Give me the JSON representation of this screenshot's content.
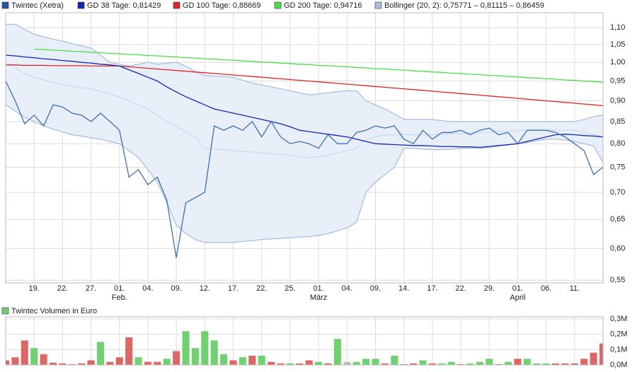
{
  "chart_data": [
    {
      "type": "line",
      "ylog": true,
      "grid": true,
      "xlim": [
        0,
        63
      ],
      "ylim": [
        0.546,
        1.146
      ],
      "yticks": [
        {
          "value": 0.55,
          "label": "0,55"
        },
        {
          "value": 0.6,
          "label": "0,60"
        },
        {
          "value": 0.65,
          "label": "0,65"
        },
        {
          "value": 0.7,
          "label": "0,70"
        },
        {
          "value": 0.75,
          "label": "0,75"
        },
        {
          "value": 0.8,
          "label": "0,80"
        },
        {
          "value": 0.85,
          "label": "0,85"
        },
        {
          "value": 0.9,
          "label": "0,90"
        },
        {
          "value": 0.95,
          "label": "0,95"
        },
        {
          "value": 1.0,
          "label": "1,00"
        },
        {
          "value": 1.05,
          "label": "1,05"
        },
        {
          "value": 1.1,
          "label": "1,10"
        }
      ],
      "xticks": [
        {
          "value": 3,
          "label": "19."
        },
        {
          "value": 6,
          "label": "22."
        },
        {
          "value": 9,
          "label": "27."
        },
        {
          "value": 12,
          "label": "01."
        },
        {
          "value": 15,
          "label": "04."
        },
        {
          "value": 18,
          "label": "09."
        },
        {
          "value": 21,
          "label": "12."
        },
        {
          "value": 24,
          "label": "17."
        },
        {
          "value": 27,
          "label": "22."
        },
        {
          "value": 30,
          "label": "25."
        },
        {
          "value": 33,
          "label": "01."
        },
        {
          "value": 36,
          "label": "04."
        },
        {
          "value": 39,
          "label": "09."
        },
        {
          "value": 42,
          "label": "14."
        },
        {
          "value": 45,
          "label": "17."
        },
        {
          "value": 48,
          "label": "22."
        },
        {
          "value": 51,
          "label": "29."
        },
        {
          "value": 54,
          "label": "01."
        },
        {
          "value": 57,
          "label": "06."
        },
        {
          "value": 60,
          "label": "11."
        }
      ],
      "month_ticks": [
        {
          "value": 12,
          "label": "Feb."
        },
        {
          "value": 33,
          "label": "März"
        },
        {
          "value": 54,
          "label": "April"
        }
      ],
      "series": [
        {
          "name": "Twintec (Xetra)",
          "color": "#3d6fb8",
          "legend_color": "#2255a4",
          "values": [
            0.95,
            0.9,
            0.845,
            0.865,
            0.84,
            0.89,
            0.885,
            0.87,
            0.865,
            0.85,
            0.87,
            0.85,
            0.83,
            0.73,
            0.745,
            0.715,
            0.73,
            0.685,
            0.585,
            0.68,
            0.69,
            0.7,
            0.84,
            0.83,
            0.84,
            0.83,
            0.85,
            0.815,
            0.85,
            0.815,
            0.8,
            0.805,
            0.8,
            0.79,
            0.82,
            0.8,
            0.8,
            0.825,
            0.83,
            0.84,
            0.835,
            0.84,
            0.81,
            0.8,
            0.83,
            0.81,
            0.825,
            0.825,
            0.83,
            0.82,
            0.83,
            0.835,
            0.82,
            0.825,
            0.8,
            0.83,
            0.83,
            0.83,
            0.825,
            0.815,
            0.8,
            0.785,
            0.735,
            0.75
          ]
        },
        {
          "name": "GD 38 Tage: 0,81429",
          "color": "#1426b4",
          "values": [
            1.02,
            1.018,
            1.015,
            1.013,
            1.01,
            1.008,
            1.005,
            1.003,
            1.0,
            0.998,
            0.995,
            0.993,
            0.99,
            0.98,
            0.97,
            0.96,
            0.95,
            0.935,
            0.922,
            0.91,
            0.9,
            0.89,
            0.88,
            0.875,
            0.87,
            0.865,
            0.86,
            0.855,
            0.85,
            0.845,
            0.838,
            0.83,
            0.827,
            0.824,
            0.821,
            0.818,
            0.815,
            0.81,
            0.805,
            0.8,
            0.799,
            0.798,
            0.797,
            0.796,
            0.796,
            0.795,
            0.794,
            0.794,
            0.793,
            0.793,
            0.792,
            0.794,
            0.796,
            0.798,
            0.8,
            0.805,
            0.81,
            0.815,
            0.82,
            0.821,
            0.82,
            0.818,
            0.817,
            0.815
          ]
        },
        {
          "name": "GD 100 Tage: 0,88669",
          "color": "#e02424",
          "values": [
            0.993,
            0.993,
            0.992,
            0.992,
            0.992,
            0.991,
            0.991,
            0.991,
            0.991,
            0.99,
            0.99,
            0.99,
            0.99,
            0.988,
            0.986,
            0.984,
            0.982,
            0.98,
            0.978,
            0.976,
            0.974,
            0.972,
            0.97,
            0.968,
            0.966,
            0.964,
            0.962,
            0.96,
            0.958,
            0.956,
            0.954,
            0.952,
            0.95,
            0.948,
            0.946,
            0.944,
            0.942,
            0.94,
            0.938,
            0.936,
            0.934,
            0.932,
            0.93,
            0.928,
            0.926,
            0.924,
            0.922,
            0.92,
            0.918,
            0.916,
            0.914,
            0.912,
            0.91,
            0.908,
            0.906,
            0.904,
            0.902,
            0.9,
            0.898,
            0.896,
            0.894,
            0.892,
            0.89,
            0.888
          ]
        },
        {
          "name": "GD 200 Tage: 0,94716",
          "color": "#44e044",
          "values": [
            null,
            null,
            null,
            1.037,
            1.036,
            1.034,
            1.033,
            1.031,
            1.03,
            1.028,
            1.027,
            1.025,
            1.024,
            1.022,
            1.021,
            1.019,
            1.018,
            1.016,
            1.015,
            1.013,
            1.012,
            1.01,
            1.009,
            1.007,
            1.006,
            1.004,
            1.003,
            1.001,
            1.0,
            0.998,
            0.997,
            0.995,
            0.994,
            0.992,
            0.991,
            0.989,
            0.988,
            0.986,
            0.985,
            0.983,
            0.982,
            0.98,
            0.979,
            0.977,
            0.976,
            0.974,
            0.973,
            0.971,
            0.97,
            0.968,
            0.967,
            0.965,
            0.964,
            0.962,
            0.961,
            0.959,
            0.958,
            0.956,
            0.955,
            0.953,
            0.952,
            0.95,
            0.949,
            0.947
          ]
        },
        {
          "name": "Bollinger (20, 2): 0,75771 – 0,81115 – 0,86459",
          "color": "#a3bbdf",
          "fill": "#e8eff9",
          "middle_color": "#c9d8f0",
          "legend_color": "#a8bfe3",
          "upper": [
            1.11,
            1.11,
            1.095,
            1.08,
            1.073,
            1.066,
            1.06,
            1.053,
            1.046,
            1.04,
            1.02,
            1.0,
            0.995,
            0.99,
            0.995,
            1.0,
            0.995,
            0.998,
            1.0,
            0.99,
            0.975,
            0.965,
            0.963,
            0.962,
            0.96,
            0.952,
            0.945,
            0.94,
            0.935,
            0.93,
            0.925,
            0.92,
            0.915,
            0.917,
            0.92,
            0.923,
            0.925,
            0.925,
            0.9,
            0.89,
            0.88,
            0.868,
            0.855,
            0.855,
            0.855,
            0.855,
            0.852,
            0.85,
            0.85,
            0.85,
            0.85,
            0.85,
            0.85,
            0.85,
            0.85,
            0.85,
            0.85,
            0.85,
            0.85,
            0.85,
            0.85,
            0.855,
            0.862,
            0.865
          ],
          "middle": [
            1.0,
            0.985,
            0.97,
            0.96,
            0.953,
            0.946,
            0.94,
            0.937,
            0.933,
            0.93,
            0.923,
            0.917,
            0.91,
            0.9,
            0.89,
            0.88,
            0.865,
            0.85,
            0.838,
            0.827,
            0.815,
            0.79,
            0.788,
            0.787,
            0.785,
            0.783,
            0.782,
            0.78,
            0.778,
            0.777,
            0.775,
            0.772,
            0.77,
            0.772,
            0.775,
            0.78,
            0.785,
            0.79,
            0.81,
            0.815,
            0.82,
            0.82,
            0.82,
            0.82,
            0.82,
            0.82,
            0.821,
            0.822,
            0.823,
            0.824,
            0.825,
            0.826,
            0.827,
            0.828,
            0.829,
            0.83,
            0.83,
            0.83,
            0.83,
            0.83,
            0.83,
            0.825,
            0.82,
            0.815
          ],
          "lower": [
            0.89,
            0.875,
            0.86,
            0.85,
            0.84,
            0.833,
            0.826,
            0.82,
            0.817,
            0.813,
            0.81,
            0.805,
            0.8,
            0.785,
            0.77,
            0.745,
            0.72,
            0.68,
            0.64,
            0.625,
            0.615,
            0.61,
            0.61,
            0.61,
            0.61,
            0.612,
            0.613,
            0.615,
            0.616,
            0.617,
            0.618,
            0.619,
            0.62,
            0.622,
            0.625,
            0.63,
            0.635,
            0.645,
            0.7,
            0.72,
            0.735,
            0.75,
            0.79,
            0.79,
            0.788,
            0.787,
            0.787,
            0.788,
            0.79,
            0.79,
            0.79,
            0.792,
            0.795,
            0.797,
            0.8,
            0.803,
            0.806,
            0.81,
            0.81,
            0.808,
            0.805,
            0.8,
            0.795,
            0.76
          ]
        }
      ]
    },
    {
      "type": "bar",
      "title": "Twintec Volumen in Euro",
      "legend_color": "#6ed36e",
      "grid": true,
      "xlim": [
        0,
        63
      ],
      "ylim": [
        0,
        314000
      ],
      "yticks": [
        {
          "value": 0,
          "label": "0,0M"
        },
        {
          "value": 100000,
          "label": "0,1M"
        },
        {
          "value": 200000,
          "label": "0,2M"
        },
        {
          "value": 300000,
          "label": "0,3M"
        }
      ],
      "values": [
        30000,
        50000,
        160000,
        110000,
        70000,
        15000,
        10000,
        5000,
        10000,
        30000,
        150000,
        20000,
        50000,
        180000,
        50000,
        20000,
        20000,
        40000,
        90000,
        220000,
        110000,
        220000,
        160000,
        70000,
        30000,
        50000,
        60000,
        60000,
        20000,
        10000,
        10000,
        10000,
        30000,
        20000,
        10000,
        170000,
        20000,
        20000,
        40000,
        40000,
        10000,
        60000,
        5000,
        10000,
        30000,
        10000,
        10000,
        20000,
        5000,
        10000,
        20000,
        40000,
        5000,
        20000,
        40000,
        40000,
        10000,
        10000,
        10000,
        10000,
        10000,
        40000,
        80000,
        140000
      ],
      "colors": [
        "#e06666",
        "#e06666",
        "#e06666",
        "#6ed36e",
        "#e06666",
        "#e06666",
        "#e06666",
        "#e06666",
        "#e06666",
        "#e06666",
        "#6ed36e",
        "#e06666",
        "#e06666",
        "#e06666",
        "#6ed36e",
        "#e06666",
        "#e06666",
        "#6ed36e",
        "#e06666",
        "#6ed36e",
        "#6ed36e",
        "#6ed36e",
        "#6ed36e",
        "#6ed36e",
        "#e06666",
        "#6ed36e",
        "#e06666",
        "#6ed36e",
        "#e06666",
        "#e06666",
        "#6ed36e",
        "#e06666",
        "#e06666",
        "#6ed36e",
        "#e06666",
        "#6ed36e",
        "#bbbbbb",
        "#6ed36e",
        "#6ed36e",
        "#6ed36e",
        "#e06666",
        "#6ed36e",
        "#e06666",
        "#e06666",
        "#6ed36e",
        "#e06666",
        "#6ed36e",
        "#6ed36e",
        "#e06666",
        "#6ed36e",
        "#6ed36e",
        "#6ed36e",
        "#e06666",
        "#6ed36e",
        "#e06666",
        "#6ed36e",
        "#6ed36e",
        "#6ed36e",
        "#e06666",
        "#e06666",
        "#e06666",
        "#e06666",
        "#e06666",
        "#e06666"
      ]
    }
  ]
}
